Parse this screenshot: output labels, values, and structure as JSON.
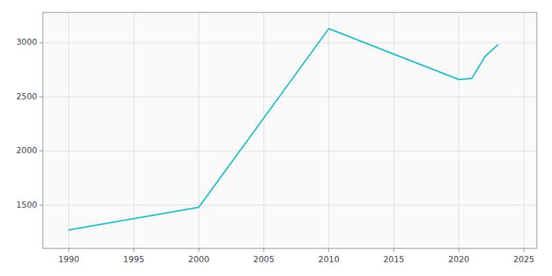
{
  "chart_data": {
    "type": "line",
    "x": [
      1990,
      2000,
      2010,
      2020,
      2021,
      2022,
      2023
    ],
    "values": [
      1270,
      1480,
      3130,
      2660,
      2670,
      2870,
      2980
    ],
    "color": "#17becf",
    "xlim": [
      1988,
      2026
    ],
    "ylim": [
      1100,
      3280
    ],
    "xticks": [
      1990,
      1995,
      2000,
      2005,
      2010,
      2015,
      2020,
      2025
    ],
    "yticks": [
      1500,
      2000,
      2500,
      3000
    ],
    "grid": true
  }
}
